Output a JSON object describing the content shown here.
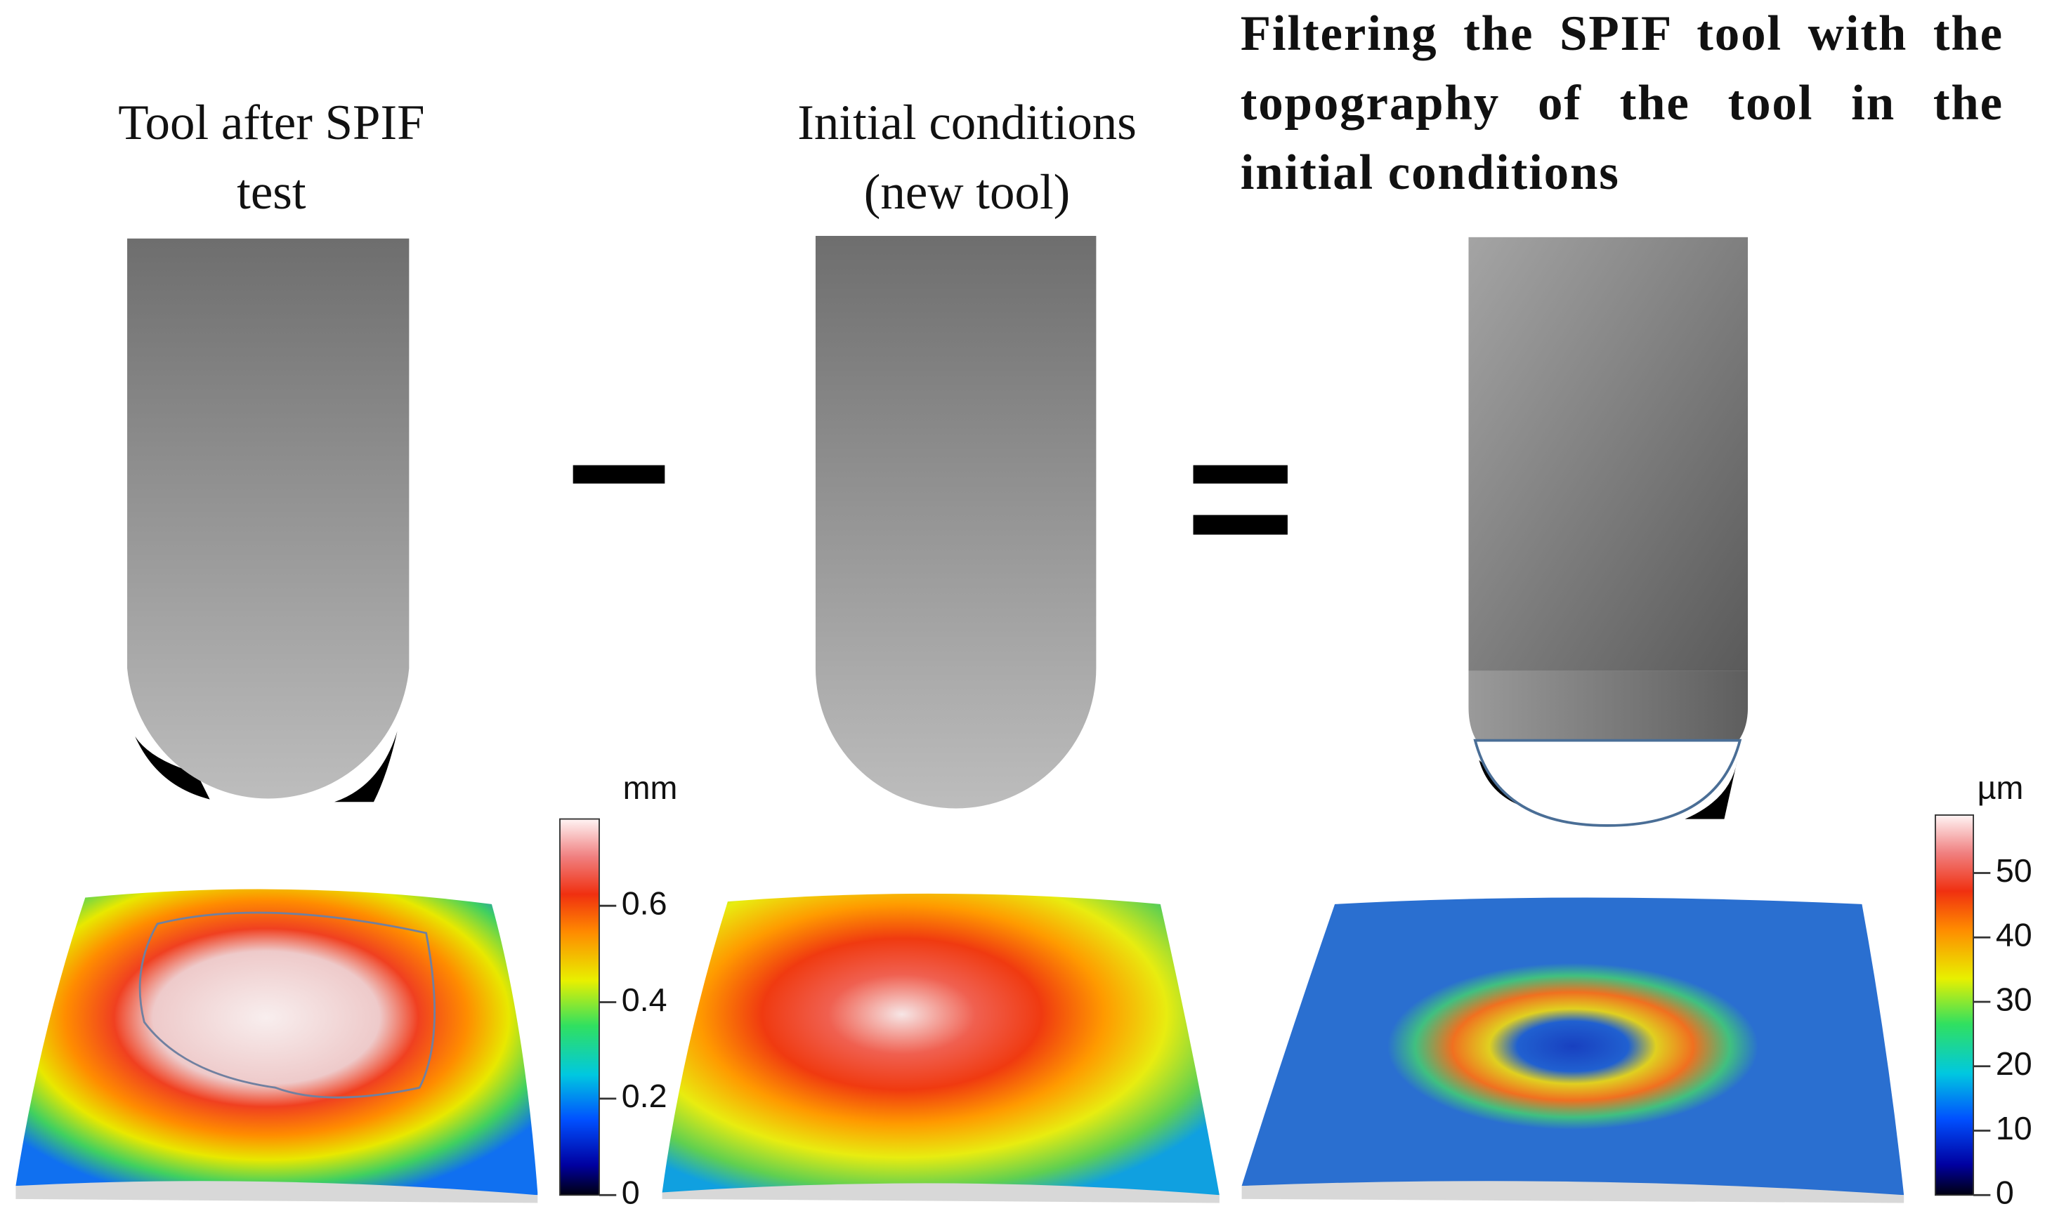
{
  "panels": [
    {
      "title": "Tool after SPIF test"
    },
    {
      "title": "Initial conditions (new tool)"
    },
    {
      "title": "Filtering the SPIF tool with the topography of the tool in the initial conditions"
    }
  ],
  "colorbars": [
    {
      "unit": "mm",
      "lim": [
        0,
        0.78
      ],
      "ticks": [
        0,
        0.2,
        0.4,
        0.6
      ]
    },
    {
      "unit": "µm",
      "lim": [
        0,
        59
      ],
      "ticks": [
        0,
        10,
        20,
        30,
        40,
        50
      ]
    }
  ]
}
